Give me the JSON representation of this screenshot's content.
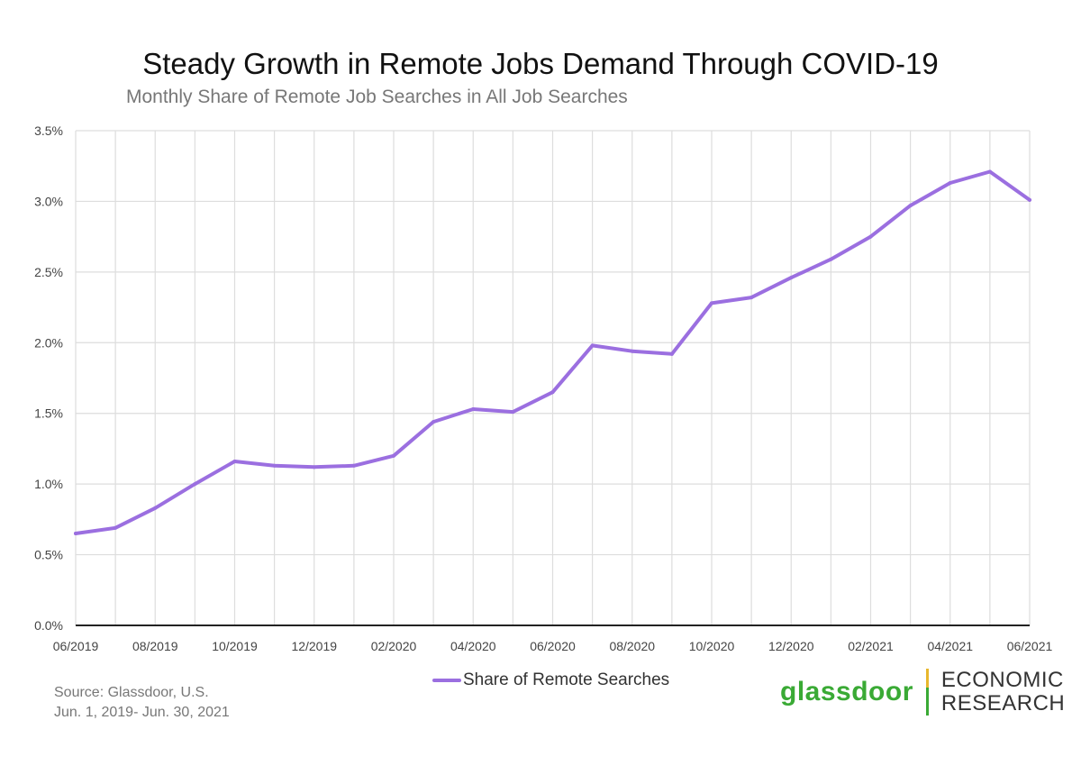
{
  "colors": {
    "line": "#9b6fe0",
    "grid": "#dddddd",
    "axis": "#222222",
    "tick_text": "#444444",
    "brand_green": "#3aaa35",
    "divider_yellow": "#e8b72d"
  },
  "chart_data": {
    "type": "line",
    "title": "Steady Growth in Remote Jobs Demand Through COVID-19",
    "subtitle": "Monthly Share of Remote Job Searches in All Job Searches",
    "x": [
      "06/2019",
      "07/2019",
      "08/2019",
      "09/2019",
      "10/2019",
      "11/2019",
      "12/2019",
      "01/2020",
      "02/2020",
      "03/2020",
      "04/2020",
      "05/2020",
      "06/2020",
      "07/2020",
      "08/2020",
      "09/2020",
      "10/2020",
      "11/2020",
      "12/2020",
      "01/2021",
      "02/2021",
      "03/2021",
      "04/2021",
      "05/2021",
      "06/2021"
    ],
    "x_tick_labels": [
      "06/2019",
      "08/2019",
      "10/2019",
      "12/2019",
      "02/2020",
      "04/2020",
      "06/2020",
      "08/2020",
      "10/2020",
      "12/2020",
      "02/2021",
      "04/2021",
      "06/2021"
    ],
    "series": [
      {
        "name": "Share of Remote Searches",
        "values": [
          0.65,
          0.69,
          0.83,
          1.0,
          1.16,
          1.13,
          1.12,
          1.13,
          1.2,
          1.44,
          1.53,
          1.51,
          1.65,
          1.98,
          1.94,
          1.92,
          2.28,
          2.32,
          2.46,
          2.59,
          2.75,
          2.97,
          3.13,
          3.21,
          3.01
        ]
      }
    ],
    "y_tick_labels": [
      "0.0%",
      "0.5%",
      "1.0%",
      "1.5%",
      "2.0%",
      "2.5%",
      "3.0%",
      "3.5%"
    ],
    "ylim": [
      0,
      3.5
    ],
    "grid": true,
    "legend_position": "bottom-center"
  },
  "source": {
    "line1": "Source: Glassdoor, U.S.",
    "line2": "Jun. 1, 2019- Jun. 30, 2021"
  },
  "logo": {
    "brand": "glassdoor",
    "text_line1": "ECONOMIC",
    "text_line2": "RESEARCH"
  }
}
